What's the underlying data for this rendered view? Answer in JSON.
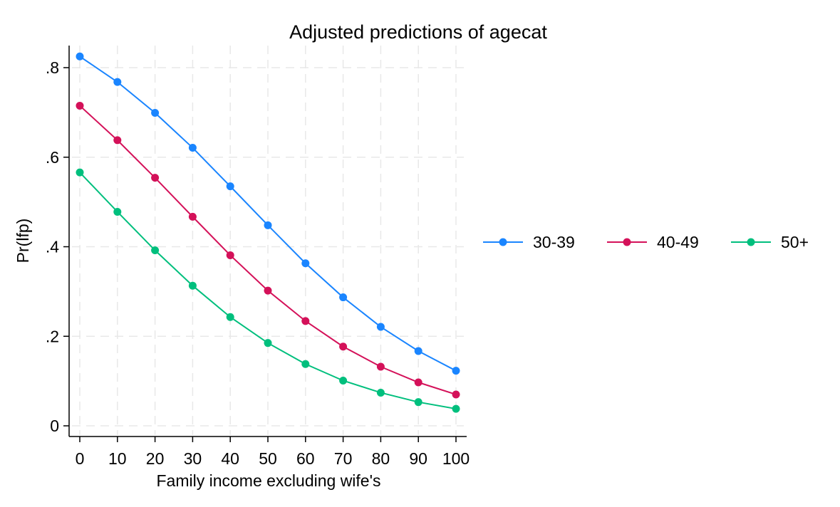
{
  "chart_data": {
    "type": "line",
    "title": "Adjusted predictions of agecat",
    "xlabel": "Family income excluding wife's",
    "ylabel": "Pr(lfp)",
    "x": [
      0,
      10,
      20,
      30,
      40,
      50,
      60,
      70,
      80,
      90,
      100
    ],
    "xlim": [
      0,
      100
    ],
    "ylim": [
      0,
      0.8
    ],
    "xticks": [
      0,
      10,
      20,
      30,
      40,
      50,
      60,
      70,
      80,
      90,
      100
    ],
    "xtick_labels": [
      "0",
      "10",
      "20",
      "30",
      "40",
      "50",
      "60",
      "70",
      "80",
      "90",
      "100"
    ],
    "yticks": [
      0,
      0.2,
      0.4,
      0.6,
      0.8
    ],
    "ytick_labels": [
      "0",
      ".2",
      ".4",
      ".6",
      ".8"
    ],
    "grid": true,
    "legend_position": "right",
    "series": [
      {
        "name": "30-39",
        "color": "#1a85ff",
        "values": [
          0.825,
          0.768,
          0.699,
          0.621,
          0.535,
          0.448,
          0.363,
          0.287,
          0.221,
          0.167,
          0.123
        ]
      },
      {
        "name": "40-49",
        "color": "#d41159",
        "values": [
          0.715,
          0.638,
          0.554,
          0.467,
          0.381,
          0.302,
          0.234,
          0.177,
          0.132,
          0.097,
          0.07
        ]
      },
      {
        "name": "50+",
        "color": "#00bf7d",
        "values": [
          0.566,
          0.478,
          0.392,
          0.313,
          0.243,
          0.185,
          0.138,
          0.101,
          0.074,
          0.053,
          0.038
        ]
      }
    ]
  }
}
